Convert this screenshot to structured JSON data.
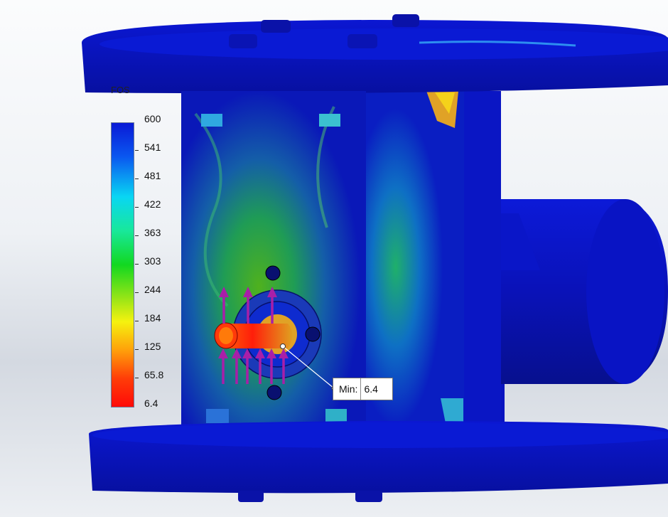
{
  "legend": {
    "title": "FOS",
    "ticks": [
      "600",
      "541",
      "481",
      "422",
      "363",
      "303",
      "244",
      "184",
      "125",
      "65.8",
      "6.4"
    ]
  },
  "probe": {
    "label": "Min:",
    "value": "6.4"
  },
  "colors": {
    "model_base": "#0a14c8",
    "model_dark": "#071091",
    "highlight_min": "#ff1e0a",
    "load_arrow": "#a81fa8"
  },
  "icons": [
    "load-arrow-icon",
    "probe-pin-icon"
  ]
}
